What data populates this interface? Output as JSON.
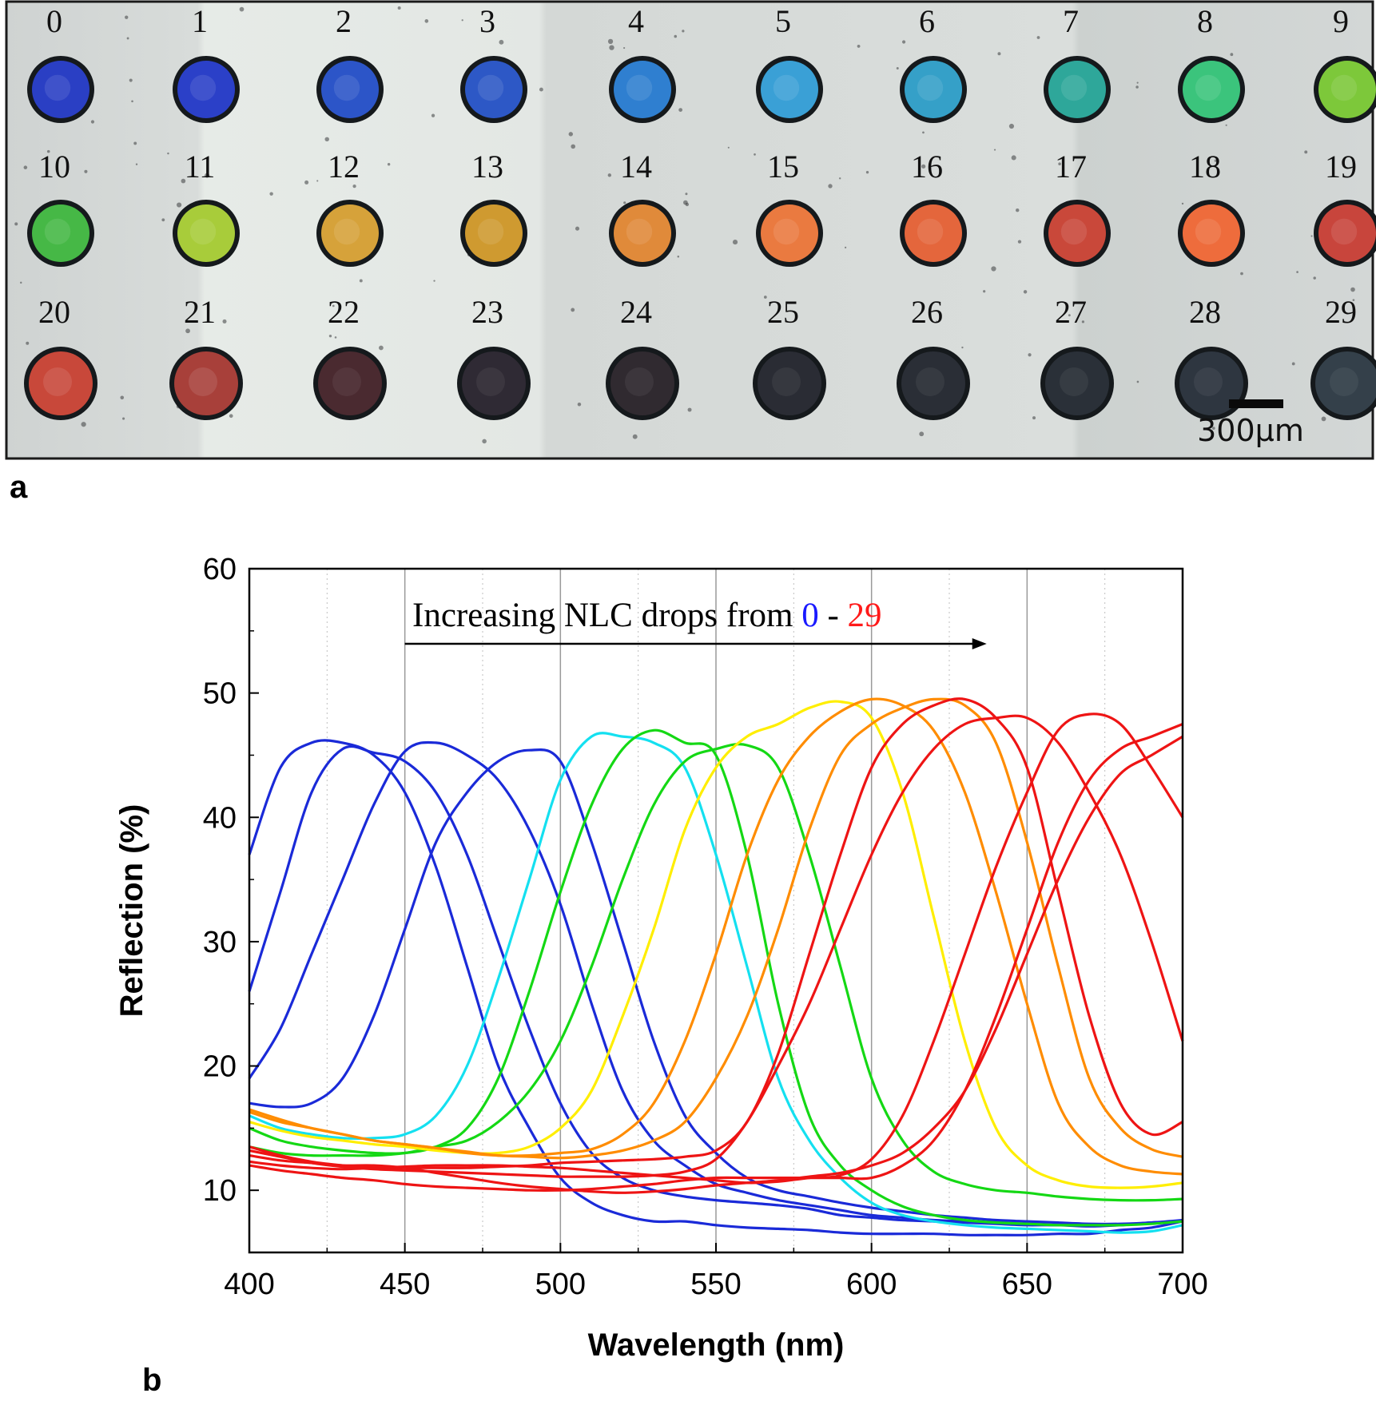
{
  "figure": {
    "panel_a_label": "a",
    "panel_b_label": "b"
  },
  "micrograph": {
    "scale_bar_label": "300µm",
    "wells": [
      {
        "id": "0",
        "color": "#2a3fc4",
        "dark": false
      },
      {
        "id": "1",
        "color": "#2b40c8",
        "dark": false
      },
      {
        "id": "2",
        "color": "#2c55c8",
        "dark": false
      },
      {
        "id": "3",
        "color": "#2d58c6",
        "dark": false
      },
      {
        "id": "4",
        "color": "#2f7fd0",
        "dark": false
      },
      {
        "id": "5",
        "color": "#3aa0d6",
        "dark": false
      },
      {
        "id": "6",
        "color": "#35a0c8",
        "dark": false
      },
      {
        "id": "7",
        "color": "#2ea79a",
        "dark": false
      },
      {
        "id": "8",
        "color": "#3bc47c",
        "dark": false
      },
      {
        "id": "9",
        "color": "#7dc83a",
        "dark": false
      },
      {
        "id": "10",
        "color": "#46b846",
        "dark": false
      },
      {
        "id": "11",
        "color": "#a8cc3a",
        "dark": false
      },
      {
        "id": "12",
        "color": "#d6a23a",
        "dark": false
      },
      {
        "id": "13",
        "color": "#cf9a30",
        "dark": false
      },
      {
        "id": "14",
        "color": "#e08a3a",
        "dark": false
      },
      {
        "id": "15",
        "color": "#ea7a40",
        "dark": false
      },
      {
        "id": "16",
        "color": "#e4663c",
        "dark": false
      },
      {
        "id": "17",
        "color": "#c9483a",
        "dark": false
      },
      {
        "id": "18",
        "color": "#ee6c3c",
        "dark": false
      },
      {
        "id": "19",
        "color": "#c8453c",
        "dark": false
      },
      {
        "id": "20",
        "color": "#c8483a",
        "dark": false
      },
      {
        "id": "21",
        "color": "#a8403a",
        "dark": false
      },
      {
        "id": "22",
        "color": "#4a2a30",
        "dark": true
      },
      {
        "id": "23",
        "color": "#2f2a34",
        "dark": true
      },
      {
        "id": "24",
        "color": "#302a30",
        "dark": true
      },
      {
        "id": "25",
        "color": "#2a2c34",
        "dark": true
      },
      {
        "id": "26",
        "color": "#2a2e36",
        "dark": true
      },
      {
        "id": "27",
        "color": "#2a3038",
        "dark": true
      },
      {
        "id": "28",
        "color": "#2e3640",
        "dark": true
      },
      {
        "id": "29",
        "color": "#34404a",
        "dark": true
      }
    ]
  },
  "chart_data": {
    "type": "line",
    "title": "",
    "xlabel": "Wavelength (nm)",
    "ylabel": "Reflection (%)",
    "xlim": [
      400,
      700
    ],
    "ylim": [
      5,
      60
    ],
    "xticks": [
      400,
      450,
      500,
      550,
      600,
      650,
      700
    ],
    "yticks": [
      10,
      20,
      30,
      40,
      50,
      60
    ],
    "grid": "vertical",
    "annotation": {
      "text_prefix": "Increasing NLC drops from ",
      "start": "0",
      "separator": " - ",
      "end": "29",
      "start_color": "#1a1aff",
      "end_color": "#ff1a1a",
      "arrow_from": 450,
      "arrow_to": 637
    },
    "x": [
      400,
      410,
      420,
      430,
      440,
      450,
      460,
      470,
      480,
      490,
      500,
      510,
      520,
      530,
      540,
      550,
      560,
      570,
      580,
      590,
      600,
      610,
      620,
      630,
      640,
      650,
      660,
      670,
      680,
      690,
      700
    ],
    "series": [
      {
        "name": "blue-1",
        "color": "#1a2ad8",
        "values": [
          37,
          44,
          46,
          46,
          45,
          42,
          36,
          28,
          20,
          15,
          11,
          9,
          8,
          7.5,
          7.5,
          7.2,
          7,
          6.9,
          6.8,
          6.6,
          6.5,
          6.5,
          6.5,
          6.4,
          6.4,
          6.4,
          6.5,
          6.5,
          6.8,
          7,
          7.5
        ]
      },
      {
        "name": "blue-2",
        "color": "#1a2ad8",
        "values": [
          26,
          34,
          42,
          45.5,
          45.2,
          44.5,
          42,
          37,
          30,
          23,
          17,
          13,
          11,
          10,
          9.5,
          9.2,
          9,
          8.8,
          8.5,
          8,
          7.8,
          7.6,
          7.5,
          7.4,
          7.3,
          7.2,
          7.2,
          7.1,
          7.2,
          7.4,
          7.5
        ]
      },
      {
        "name": "blue-3",
        "color": "#1a2ad8",
        "values": [
          19,
          23,
          29,
          35,
          41,
          45.3,
          46,
          45,
          43,
          39,
          33,
          25,
          18,
          14,
          12,
          10.5,
          9.8,
          9.2,
          8.8,
          8.4,
          8,
          7.8,
          7.6,
          7.5,
          7.4,
          7.3,
          7.2,
          7.2,
          7.2,
          7.4,
          7.5
        ]
      },
      {
        "name": "blue-4",
        "color": "#1a2ad8",
        "values": [
          17,
          16.7,
          17,
          19,
          24,
          31,
          38,
          42,
          44.5,
          45.4,
          44.5,
          38,
          30,
          22,
          16,
          13,
          11,
          10,
          9.5,
          9,
          8.6,
          8.3,
          8,
          7.8,
          7.6,
          7.5,
          7.4,
          7.3,
          7.3,
          7.4,
          7.6
        ]
      },
      {
        "name": "cyan",
        "color": "#14e0f0",
        "values": [
          16,
          15,
          14.5,
          14.2,
          14.2,
          14.5,
          16,
          20,
          27,
          35,
          43,
          46.5,
          46.5,
          46,
          44,
          37,
          28,
          19,
          14,
          11,
          9,
          8,
          7.5,
          7.2,
          7,
          6.9,
          6.8,
          6.7,
          6.6,
          6.7,
          7.2
        ]
      },
      {
        "name": "green-1",
        "color": "#14d814",
        "values": [
          15,
          14,
          13.5,
          13.2,
          13,
          13,
          13.5,
          15,
          19,
          26,
          34,
          41,
          45.5,
          47,
          46,
          45,
          37,
          25,
          16,
          12,
          10,
          8.7,
          8,
          7.6,
          7.4,
          7.3,
          7.2,
          7.2,
          7.2,
          7.3,
          7.5
        ]
      },
      {
        "name": "green-2",
        "color": "#14d814",
        "values": [
          13.5,
          13,
          12.8,
          12.8,
          12.8,
          13,
          13.5,
          14,
          15.5,
          18,
          22,
          28,
          35,
          41,
          44.5,
          45.5,
          45.8,
          44,
          37,
          28,
          19,
          14,
          11.5,
          10.5,
          10,
          9.8,
          9.5,
          9.3,
          9.2,
          9.2,
          9.3
        ]
      },
      {
        "name": "yellow",
        "color": "#ffee00",
        "values": [
          15.5,
          14.8,
          14.3,
          14,
          13.7,
          13.5,
          13.2,
          13,
          13,
          13.5,
          15,
          18,
          24,
          31,
          39,
          44,
          46.5,
          47.5,
          48.8,
          49.3,
          48,
          42,
          32,
          22,
          15,
          12,
          10.8,
          10.3,
          10.2,
          10.3,
          10.6
        ]
      },
      {
        "name": "orange-1",
        "color": "#ff8c00",
        "values": [
          16.5,
          15.7,
          15,
          14.5,
          14,
          13.7,
          13.4,
          13,
          12.8,
          12.8,
          13,
          13.3,
          14.5,
          17,
          22,
          29,
          37,
          43,
          46.5,
          48.5,
          49.5,
          49,
          47,
          42,
          34,
          25,
          17,
          13.5,
          12,
          11.5,
          11.3
        ]
      },
      {
        "name": "orange-2",
        "color": "#ff8c00",
        "values": [
          16.3,
          15.5,
          15,
          14.5,
          14,
          13.7,
          13.4,
          13.1,
          12.8,
          12.7,
          12.6,
          12.8,
          13.2,
          14,
          15.5,
          19,
          24,
          31,
          39,
          45,
          47.5,
          48.8,
          49.5,
          49,
          46,
          38,
          28,
          19,
          15,
          13.3,
          12.7
        ]
      },
      {
        "name": "red-1",
        "color": "#ee1414",
        "values": [
          13.5,
          12.8,
          12.3,
          12,
          11.8,
          11.8,
          11.8,
          11.8,
          11.9,
          12,
          12.2,
          12.3,
          12.4,
          12.5,
          12.7,
          13.2,
          15.5,
          21,
          29,
          37,
          44,
          47.5,
          49,
          49.5,
          48,
          44,
          34,
          24,
          17,
          14.5,
          15.5
        ]
      },
      {
        "name": "red-2",
        "color": "#ee1414",
        "values": [
          13.2,
          12.7,
          12.2,
          11.9,
          11.7,
          11.6,
          11.5,
          11.4,
          11.3,
          11.2,
          11.1,
          11.1,
          11.1,
          11.2,
          11.5,
          12.5,
          15.5,
          20,
          25,
          31,
          37,
          42,
          45.5,
          47.5,
          48,
          48,
          46,
          42,
          37,
          30,
          22
        ]
      },
      {
        "name": "red-3",
        "color": "#ee1414",
        "values": [
          12.3,
          12,
          11.8,
          11.7,
          11.8,
          11.9,
          12,
          12,
          12,
          11.9,
          11.8,
          11.6,
          11.4,
          11.2,
          11,
          10.8,
          10.6,
          10.7,
          11,
          11.2,
          12.5,
          16,
          22,
          29,
          36,
          42,
          47,
          48.3,
          47.5,
          44,
          40
        ]
      },
      {
        "name": "red-4",
        "color": "#ee1414",
        "values": [
          12,
          11.6,
          11.3,
          11,
          10.8,
          10.5,
          10.3,
          10.2,
          10.1,
          10,
          10,
          10.1,
          10.3,
          10.5,
          10.8,
          11,
          11,
          11,
          11,
          11,
          11,
          12,
          14,
          18,
          24,
          31,
          38,
          43,
          45.5,
          46.5,
          47.5
        ]
      },
      {
        "name": "red-5",
        "color": "#ee1414",
        "values": [
          12.8,
          12.4,
          12.2,
          12,
          12,
          11.8,
          11.4,
          11,
          10.6,
          10.3,
          10.1,
          9.9,
          9.8,
          9.9,
          10.1,
          10.4,
          10.6,
          10.8,
          11.1,
          11.4,
          12,
          13,
          15,
          18,
          23,
          29,
          35,
          40,
          43.5,
          45,
          46.5
        ]
      }
    ]
  }
}
